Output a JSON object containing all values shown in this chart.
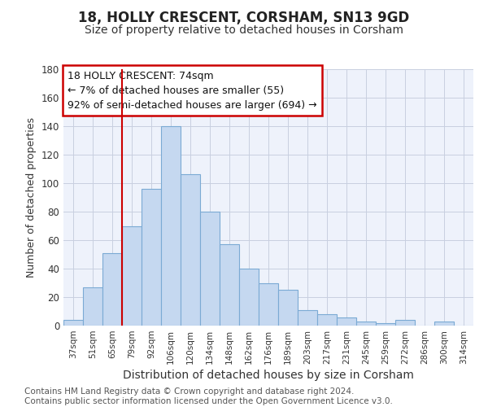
{
  "title": "18, HOLLY CRESCENT, CORSHAM, SN13 9GD",
  "subtitle": "Size of property relative to detached houses in Corsham",
  "xlabel": "Distribution of detached houses by size in Corsham",
  "ylabel": "Number of detached properties",
  "categories": [
    "37sqm",
    "51sqm",
    "65sqm",
    "79sqm",
    "92sqm",
    "106sqm",
    "120sqm",
    "134sqm",
    "148sqm",
    "162sqm",
    "176sqm",
    "189sqm",
    "203sqm",
    "217sqm",
    "231sqm",
    "245sqm",
    "259sqm",
    "272sqm",
    "286sqm",
    "300sqm",
    "314sqm"
  ],
  "values": [
    4,
    27,
    51,
    70,
    96,
    140,
    106,
    80,
    57,
    40,
    30,
    25,
    11,
    8,
    6,
    3,
    2,
    4,
    0,
    3,
    0
  ],
  "bar_color": "#c5d8f0",
  "bar_edge_color": "#7baad4",
  "annotation_line1": "18 HOLLY CRESCENT: 74sqm",
  "annotation_line2": "← 7% of detached houses are smaller (55)",
  "annotation_line3": "92% of semi-detached houses are larger (694) →",
  "annotation_box_color": "#ffffff",
  "annotation_box_edge_color": "#cc0000",
  "ylim": [
    0,
    180
  ],
  "yticks": [
    0,
    20,
    40,
    60,
    80,
    100,
    120,
    140,
    160,
    180
  ],
  "vline_color": "#cc0000",
  "vline_bar_index": 2.5,
  "footer_line1": "Contains HM Land Registry data © Crown copyright and database right 2024.",
  "footer_line2": "Contains public sector information licensed under the Open Government Licence v3.0.",
  "bg_color": "#ffffff",
  "plot_bg_color": "#eef2fb",
  "grid_color": "#c8cfe0",
  "title_fontsize": 12,
  "subtitle_fontsize": 10,
  "annotation_fontsize": 9,
  "footer_fontsize": 7.5,
  "ylabel_fontsize": 9,
  "xlabel_fontsize": 10
}
